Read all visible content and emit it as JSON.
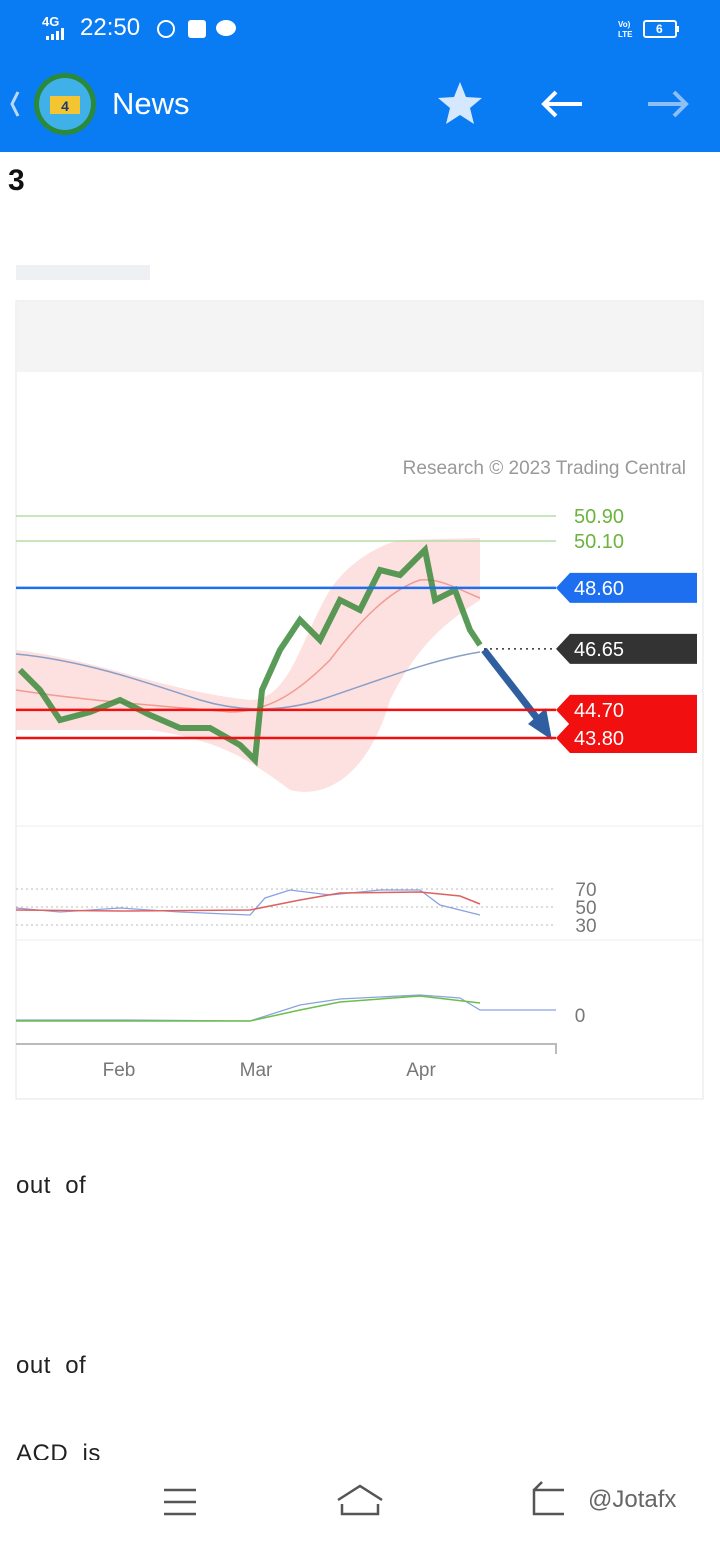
{
  "status_bar": {
    "network": "4G",
    "time": "22:50",
    "battery": "6"
  },
  "app_bar": {
    "title": "News"
  },
  "article": {
    "heading_fragment": "3",
    "chart": {
      "copyright": "Research © 2023 Trading Central",
      "levels": [
        {
          "value": 50.9,
          "label": "50.90",
          "color": "#6db33f",
          "boxed": false
        },
        {
          "value": 50.1,
          "label": "50.10",
          "color": "#6db33f",
          "boxed": false
        },
        {
          "value": 48.6,
          "label": "48.60",
          "color": "#1e6ff0",
          "boxed": true
        },
        {
          "value": 46.65,
          "label": "46.65",
          "color": "#333333",
          "boxed": true
        },
        {
          "value": 44.7,
          "label": "44.70",
          "color": "#f20f0f",
          "boxed": true
        },
        {
          "value": 43.8,
          "label": "43.80",
          "color": "#f20f0f",
          "boxed": true
        }
      ],
      "rsi_ticks": [
        70,
        50,
        30
      ],
      "macd_tick": 0,
      "months": [
        "Feb",
        "Mar",
        "Apr"
      ]
    },
    "paragraphs": [
      "out  of",
      "out  of",
      "ACD  is"
    ]
  },
  "watermark": "@Jotafx"
}
